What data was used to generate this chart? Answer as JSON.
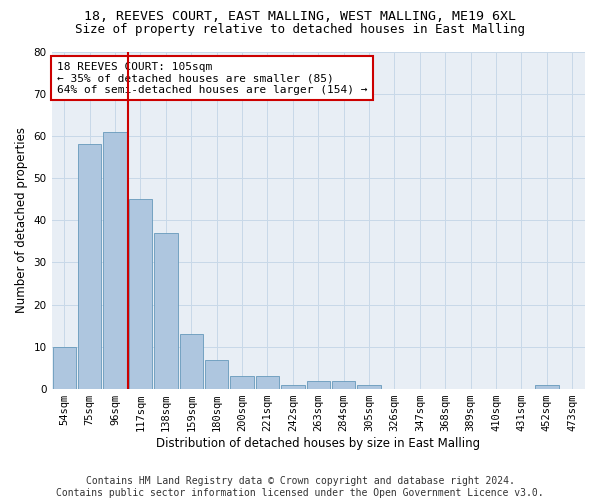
{
  "title_line1": "18, REEVES COURT, EAST MALLING, WEST MALLING, ME19 6XL",
  "title_line2": "Size of property relative to detached houses in East Malling",
  "xlabel": "Distribution of detached houses by size in East Malling",
  "ylabel": "Number of detached properties",
  "categories": [
    "54sqm",
    "75sqm",
    "96sqm",
    "117sqm",
    "138sqm",
    "159sqm",
    "180sqm",
    "200sqm",
    "221sqm",
    "242sqm",
    "263sqm",
    "284sqm",
    "305sqm",
    "326sqm",
    "347sqm",
    "368sqm",
    "389sqm",
    "410sqm",
    "431sqm",
    "452sqm",
    "473sqm"
  ],
  "values": [
    10,
    58,
    61,
    45,
    37,
    13,
    7,
    3,
    3,
    1,
    2,
    2,
    1,
    0,
    0,
    0,
    0,
    0,
    0,
    1,
    0
  ],
  "bar_color": "#aec6df",
  "bar_edge_color": "#6699bb",
  "grid_color": "#c8d8e8",
  "background_color": "#e8eef5",
  "vline_x": 2.5,
  "vline_color": "#cc0000",
  "annotation_box_text": "18 REEVES COURT: 105sqm\n← 35% of detached houses are smaller (85)\n64% of semi-detached houses are larger (154) →",
  "ylim": [
    0,
    80
  ],
  "yticks": [
    0,
    10,
    20,
    30,
    40,
    50,
    60,
    70,
    80
  ],
  "footer_line1": "Contains HM Land Registry data © Crown copyright and database right 2024.",
  "footer_line2": "Contains public sector information licensed under the Open Government Licence v3.0.",
  "title_fontsize": 9.5,
  "subtitle_fontsize": 9,
  "axis_label_fontsize": 8.5,
  "tick_fontsize": 7.5,
  "annotation_fontsize": 8,
  "footer_fontsize": 7
}
